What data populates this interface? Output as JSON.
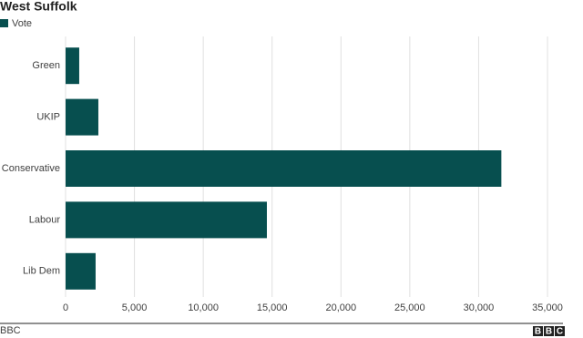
{
  "chart_data": {
    "type": "bar",
    "orientation": "horizontal",
    "title": "West Suffolk",
    "legend": "Vote",
    "color": "#074f4f",
    "categories": [
      "Green",
      "UKIP",
      "Conservative",
      "Labour",
      "Lib Dem"
    ],
    "values": [
      990,
      2380,
      31650,
      14620,
      2180
    ],
    "xlim": [
      0,
      35000
    ],
    "xticks": [
      0,
      {
        "value": 5000,
        "label": "5,000"
      },
      {
        "value": 10000,
        "label": "10,000"
      },
      {
        "value": 15000,
        "label": "15,000"
      },
      {
        "value": 20000,
        "label": "20,000"
      },
      {
        "value": 25000,
        "label": "25,000"
      },
      {
        "value": 30000,
        "label": "30,000"
      },
      {
        "value": 35000,
        "label": "35,000"
      }
    ],
    "grid": true
  },
  "footer": {
    "source": "BBC",
    "logo": [
      "B",
      "B",
      "C"
    ]
  }
}
